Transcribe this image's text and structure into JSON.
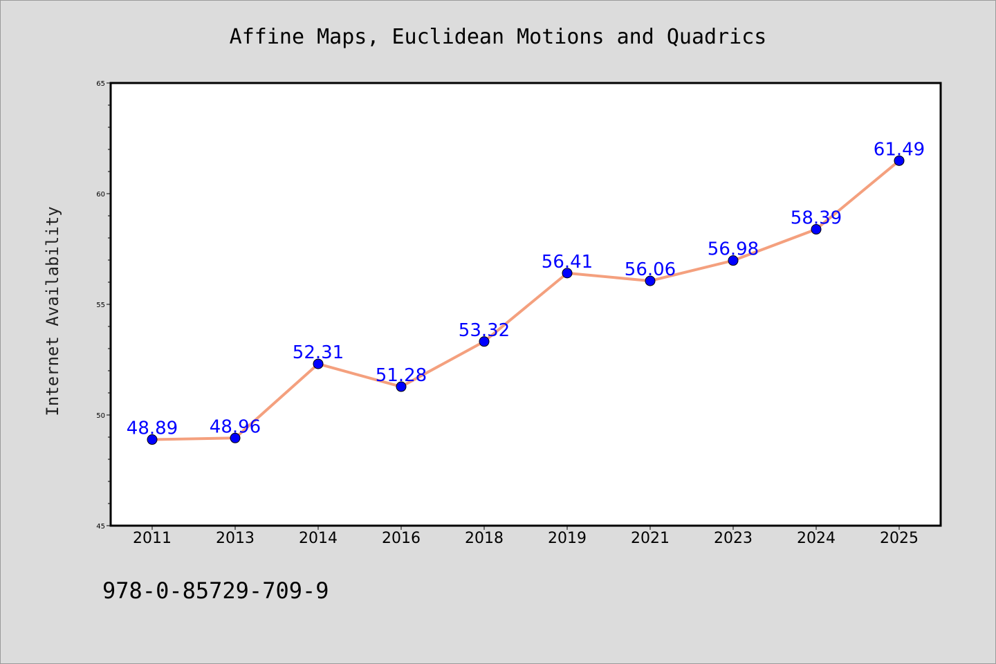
{
  "chart_data": {
    "type": "line",
    "title": "Affine Maps, Euclidean Motions and Quadrics",
    "xlabel": "",
    "ylabel": "Internet Availability",
    "categories": [
      "2011",
      "2013",
      "2014",
      "2016",
      "2018",
      "2019",
      "2021",
      "2023",
      "2024",
      "2025"
    ],
    "values": [
      48.89,
      48.96,
      52.31,
      51.28,
      53.32,
      56.41,
      56.06,
      56.98,
      58.39,
      61.49
    ],
    "data_labels": [
      "48.89",
      "48.96",
      "52.31",
      "51.28",
      "53.32",
      "56.41",
      "56.06",
      "56.98",
      "58.39",
      "61.49"
    ],
    "ylim": [
      45,
      65
    ],
    "yticks": [
      "45",
      "50",
      "55",
      "60",
      "65"
    ],
    "grid": false,
    "legend": "none",
    "colors": {
      "line": "#f4a07e",
      "marker": "#0000ff",
      "data_label": "#0000ff",
      "plot_background": "#ffffff",
      "figure_background": "#dcdcdc"
    }
  },
  "footer_text": "978-0-85729-709-9"
}
